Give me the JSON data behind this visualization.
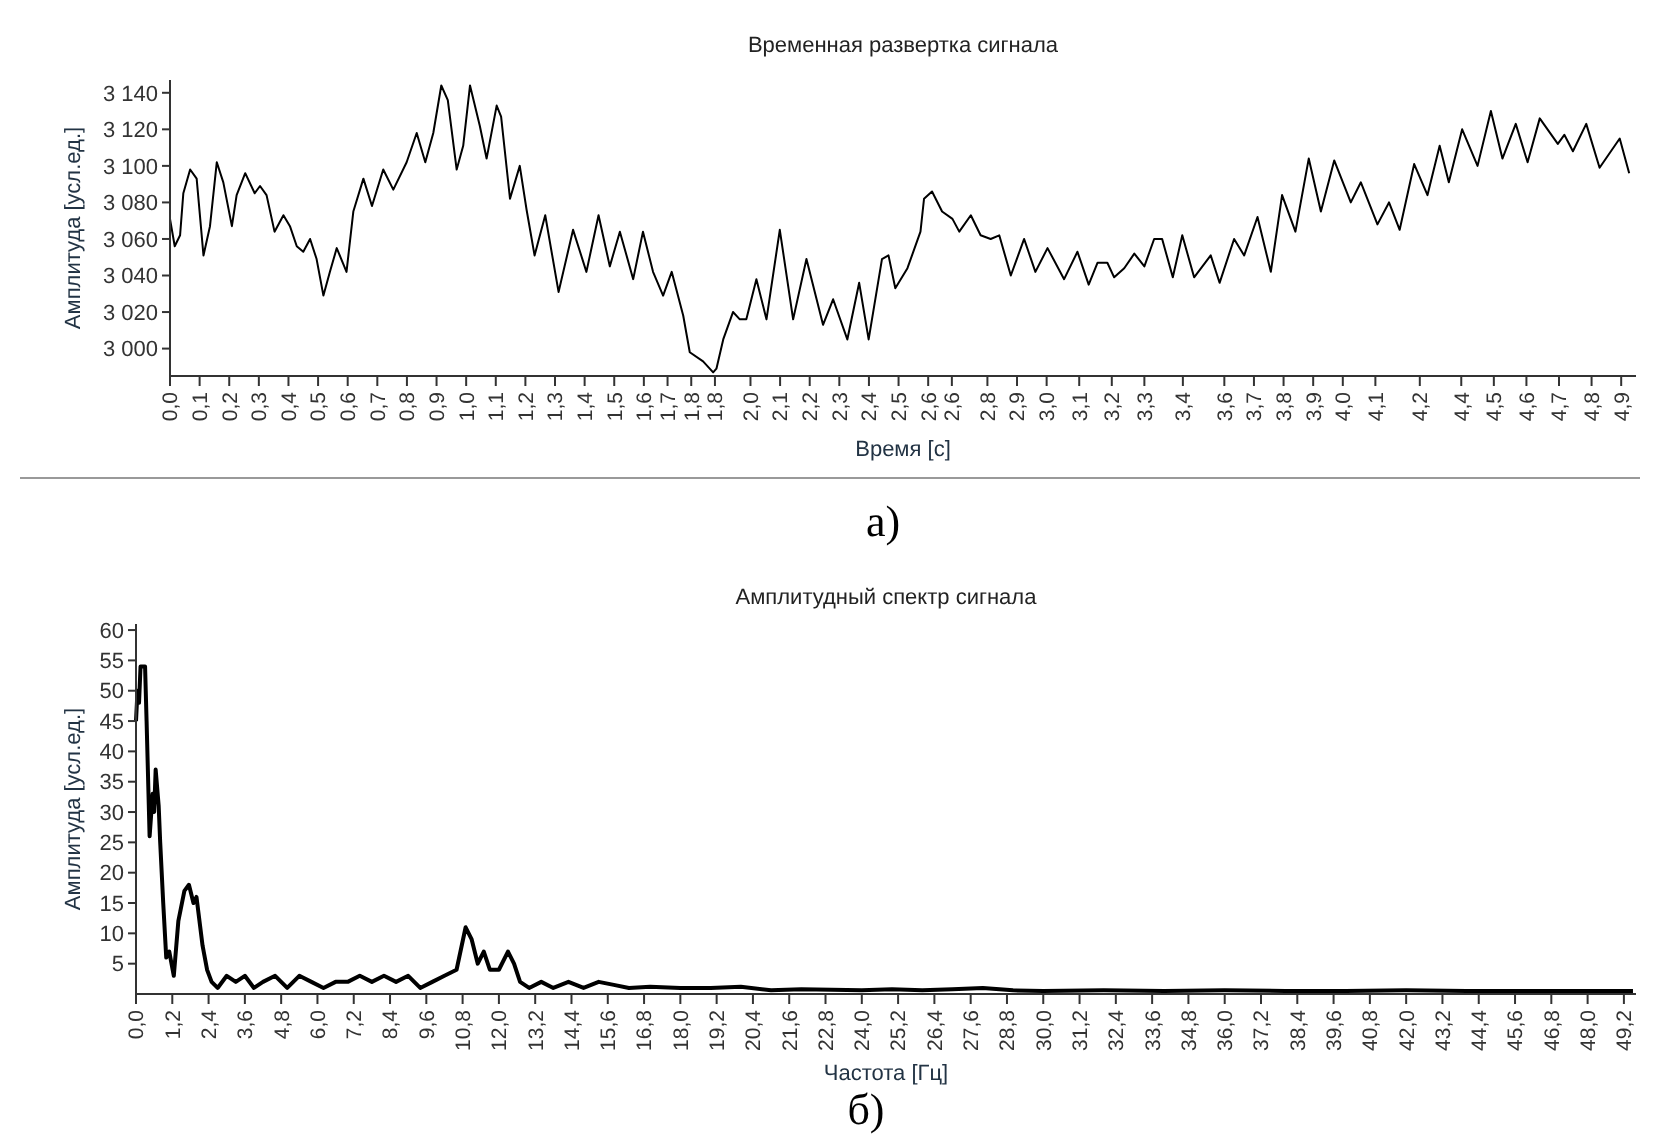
{
  "chart_data": [
    {
      "type": "line",
      "title": "Временная развертка сигнала",
      "xlabel": "Время [с]",
      "ylabel": "Амплитуда [усл.ед.]",
      "annotations": [
        "а)"
      ],
      "x": [
        0,
        0.016,
        0.034,
        0.045,
        0.068,
        0.09,
        0.113,
        0.135,
        0.158,
        0.18,
        0.209,
        0.225,
        0.254,
        0.286,
        0.304,
        0.326,
        0.353,
        0.383,
        0.405,
        0.428,
        0.45,
        0.473,
        0.495,
        0.518,
        0.54,
        0.563,
        0.596,
        0.619,
        0.653,
        0.682,
        0.72,
        0.754,
        0.799,
        0.833,
        0.862,
        0.889,
        0.916,
        0.938,
        0.968,
        0.99,
        1.013,
        1.046,
        1.069,
        1.103,
        1.118,
        1.148,
        1.181,
        1.204,
        1.231,
        1.267,
        1.312,
        1.361,
        1.406,
        1.447,
        1.485,
        1.519,
        1.564,
        1.597,
        1.631,
        1.665,
        1.694,
        1.733,
        1.755,
        1.8,
        1.834,
        1.845,
        1.868,
        1.901,
        1.924,
        1.946,
        1.98,
        2.014,
        2.059,
        2.104,
        2.149,
        2.205,
        2.239,
        2.287,
        2.327,
        2.359,
        2.404,
        2.426,
        2.449,
        2.49,
        2.534,
        2.546,
        2.573,
        2.607,
        2.642,
        2.665,
        2.704,
        2.737,
        2.771,
        2.8,
        2.839,
        2.884,
        2.922,
        2.963,
        3.019,
        3.064,
        3.102,
        3.132,
        3.165,
        3.188,
        3.222,
        3.256,
        3.29,
        3.323,
        3.35,
        3.386,
        3.418,
        3.458,
        3.514,
        3.544,
        3.593,
        3.627,
        3.672,
        3.717,
        3.755,
        3.8,
        3.845,
        3.886,
        3.931,
        3.987,
        4.021,
        4.077,
        4.116,
        4.152,
        4.201,
        4.246,
        4.287,
        4.318,
        4.363,
        4.415,
        4.46,
        4.499,
        4.544,
        4.584,
        4.625,
        4.686,
        4.708,
        4.737,
        4.782,
        4.827,
        4.895,
        4.927
      ],
      "series": [
        {
          "color": "#000000",
          "values": [
            3071,
            3056,
            3062,
            3085,
            3098,
            3093,
            3051,
            3067,
            3102,
            3091,
            3067,
            3084,
            3096,
            3085,
            3089,
            3084,
            3064,
            3073,
            3067,
            3056,
            3053,
            3060,
            3049,
            3029,
            3042,
            3055,
            3042,
            3075,
            3093,
            3078,
            3098,
            3087,
            3102,
            3118,
            3102,
            3118,
            3144,
            3136,
            3098,
            3111,
            3144,
            3122,
            3104,
            3133,
            3127,
            3082,
            3100,
            3076,
            3051,
            3073,
            3031,
            3065,
            3042,
            3073,
            3045,
            3064,
            3038,
            3064,
            3042,
            3029,
            3042,
            3018,
            2998,
            2993,
            2987,
            2989,
            3005,
            3020,
            3016,
            3016,
            3038,
            3016,
            3065,
            3016,
            3049,
            3013,
            3027,
            3005,
            3036,
            3005,
            3049,
            3051,
            3033,
            3044,
            3064,
            3082,
            3086,
            3075,
            3071,
            3064,
            3073,
            3062,
            3060,
            3062,
            3040,
            3060,
            3042,
            3055,
            3038,
            3053,
            3035,
            3047,
            3047,
            3039,
            3044,
            3052,
            3045,
            3060,
            3060,
            3039,
            3062,
            3039,
            3051,
            3036,
            3060,
            3051,
            3072,
            3042,
            3084,
            3064,
            3104,
            3075,
            3103,
            3080,
            3091,
            3068,
            3080,
            3065,
            3101,
            3084,
            3111,
            3091,
            3120,
            3100,
            3130,
            3104,
            3123,
            3102,
            3126,
            3112,
            3117,
            3108,
            3123,
            3099,
            3115,
            3096
          ]
        }
      ],
      "xlim": [
        0,
        4.95
      ],
      "ylim": [
        2985,
        3147
      ],
      "xticks": [
        {
          "value": 0,
          "label": "0,0"
        },
        {
          "value": 0.1,
          "label": "0,1"
        },
        {
          "value": 0.2,
          "label": "0,2"
        },
        {
          "value": 0.3,
          "label": "0,3"
        },
        {
          "value": 0.4,
          "label": "0,4"
        },
        {
          "value": 0.5,
          "label": "0,5"
        },
        {
          "value": 0.6,
          "label": "0,6"
        },
        {
          "value": 0.7,
          "label": "0,7"
        },
        {
          "value": 0.8,
          "label": "0,8"
        },
        {
          "value": 0.9,
          "label": "0,9"
        },
        {
          "value": 1.0,
          "label": "1,0"
        },
        {
          "value": 1.1,
          "label": "1,1"
        },
        {
          "value": 1.2,
          "label": "1,2"
        },
        {
          "value": 1.3,
          "label": "1,3"
        },
        {
          "value": 1.4,
          "label": "1,4"
        },
        {
          "value": 1.5,
          "label": "1,5"
        },
        {
          "value": 1.6,
          "label": "1,6"
        },
        {
          "value": 1.68,
          "label": "1,7"
        },
        {
          "value": 1.76,
          "label": "1,8"
        },
        {
          "value": 1.84,
          "label": "1,8"
        },
        {
          "value": 1.96,
          "label": "2,0"
        },
        {
          "value": 2.06,
          "label": "2,1"
        },
        {
          "value": 2.16,
          "label": "2,2"
        },
        {
          "value": 2.26,
          "label": "2,3"
        },
        {
          "value": 2.36,
          "label": "2,4"
        },
        {
          "value": 2.46,
          "label": "2,5"
        },
        {
          "value": 2.56,
          "label": "2,6"
        },
        {
          "value": 2.64,
          "label": "2,6"
        },
        {
          "value": 2.76,
          "label": "2,8"
        },
        {
          "value": 2.86,
          "label": "2,9"
        },
        {
          "value": 2.96,
          "label": "3,0"
        },
        {
          "value": 3.07,
          "label": "3,1"
        },
        {
          "value": 3.18,
          "label": "3,2"
        },
        {
          "value": 3.29,
          "label": "3,3"
        },
        {
          "value": 3.42,
          "label": "3,4"
        },
        {
          "value": 3.56,
          "label": "3,6"
        },
        {
          "value": 3.66,
          "label": "3,7"
        },
        {
          "value": 3.76,
          "label": "3,8"
        },
        {
          "value": 3.86,
          "label": "3,9"
        },
        {
          "value": 3.96,
          "label": "4,0"
        },
        {
          "value": 4.07,
          "label": "4,1"
        },
        {
          "value": 4.22,
          "label": "4,2"
        },
        {
          "value": 4.36,
          "label": "4,4"
        },
        {
          "value": 4.47,
          "label": "4,5"
        },
        {
          "value": 4.58,
          "label": "4,6"
        },
        {
          "value": 4.69,
          "label": "4,7"
        },
        {
          "value": 4.8,
          "label": "4,8"
        },
        {
          "value": 4.9,
          "label": "4,9"
        }
      ],
      "yticks": [
        {
          "value": 3000,
          "label": "3 000"
        },
        {
          "value": 3020,
          "label": "3 020"
        },
        {
          "value": 3040,
          "label": "3 040"
        },
        {
          "value": 3060,
          "label": "3 060"
        },
        {
          "value": 3080,
          "label": "3 080"
        },
        {
          "value": 3100,
          "label": "3 100"
        },
        {
          "value": 3120,
          "label": "3 120"
        },
        {
          "value": 3140,
          "label": "3 140"
        }
      ],
      "grid": false,
      "marker": "none",
      "line_style": "solid"
    },
    {
      "type": "line",
      "title": "Амплитудный спектр сигнала",
      "xlabel": "Частота [Гц]",
      "ylabel": "Амплитуда [усл.ед.]",
      "annotations": [
        "б)"
      ],
      "x": [
        0,
        0.05,
        0.1,
        0.15,
        0.3,
        0.35,
        0.45,
        0.55,
        0.6,
        0.65,
        0.75,
        0.8,
        0.9,
        1.0,
        1.1,
        1.25,
        1.4,
        1.6,
        1.75,
        1.9,
        2.0,
        2.2,
        2.35,
        2.5,
        2.7,
        3.0,
        3.3,
        3.6,
        3.9,
        4.2,
        4.6,
        5.0,
        5.4,
        5.8,
        6.2,
        6.6,
        7.0,
        7.4,
        7.8,
        8.2,
        8.6,
        9.0,
        9.4,
        9.8,
        10.2,
        10.6,
        10.9,
        11.1,
        11.3,
        11.5,
        11.7,
        12.0,
        12.3,
        12.5,
        12.7,
        13.0,
        13.4,
        13.8,
        14.3,
        14.8,
        15.3,
        15.8,
        16.3,
        17,
        18,
        19,
        20,
        21,
        22,
        23,
        24,
        25,
        26,
        27,
        28,
        29,
        30,
        32,
        34,
        36,
        38,
        40,
        42,
        44,
        46,
        48,
        49.5
      ],
      "series": [
        {
          "color": "#000000",
          "values": [
            45,
            50,
            48,
            54,
            54,
            45,
            26,
            33,
            30,
            37,
            31,
            25,
            15,
            6,
            7,
            3,
            12,
            17,
            18,
            15,
            16,
            8,
            4,
            2,
            1,
            3,
            2,
            3,
            1,
            2,
            3,
            1,
            3,
            2,
            1,
            2,
            2,
            3,
            2,
            3,
            2,
            3,
            1,
            2,
            3,
            4,
            11,
            9,
            5,
            7,
            4,
            4,
            7,
            5,
            2,
            1,
            2,
            1,
            2,
            1,
            2,
            1.5,
            1,
            1.2,
            1,
            1,
            1.2,
            0.6,
            0.8,
            0.7,
            0.6,
            0.8,
            0.6,
            0.8,
            1,
            0.6,
            0.5,
            0.6,
            0.5,
            0.6,
            0.5,
            0.5,
            0.6,
            0.5,
            0.5,
            0.5,
            0.5
          ]
        }
      ],
      "xlim": [
        0,
        49.6
      ],
      "ylim": [
        0,
        61
      ],
      "xticks": [
        {
          "value": 0,
          "label": "0,0"
        },
        {
          "value": 1.2,
          "label": "1,2"
        },
        {
          "value": 2.4,
          "label": "2,4"
        },
        {
          "value": 3.6,
          "label": "3,6"
        },
        {
          "value": 4.8,
          "label": "4,8"
        },
        {
          "value": 6,
          "label": "6,0"
        },
        {
          "value": 7.2,
          "label": "7,2"
        },
        {
          "value": 8.4,
          "label": "8,4"
        },
        {
          "value": 9.6,
          "label": "9,6"
        },
        {
          "value": 10.8,
          "label": "10,8"
        },
        {
          "value": 12,
          "label": "12,0"
        },
        {
          "value": 13.2,
          "label": "13,2"
        },
        {
          "value": 14.4,
          "label": "14,4"
        },
        {
          "value": 15.6,
          "label": "15,6"
        },
        {
          "value": 16.8,
          "label": "16,8"
        },
        {
          "value": 18,
          "label": "18,0"
        },
        {
          "value": 19.2,
          "label": "19,2"
        },
        {
          "value": 20.4,
          "label": "20,4"
        },
        {
          "value": 21.6,
          "label": "21,6"
        },
        {
          "value": 22.8,
          "label": "22,8"
        },
        {
          "value": 24,
          "label": "24,0"
        },
        {
          "value": 25.2,
          "label": "25,2"
        },
        {
          "value": 26.4,
          "label": "26,4"
        },
        {
          "value": 27.6,
          "label": "27,6"
        },
        {
          "value": 28.8,
          "label": "28,8"
        },
        {
          "value": 30,
          "label": "30,0"
        },
        {
          "value": 31.2,
          "label": "31,2"
        },
        {
          "value": 32.4,
          "label": "32,4"
        },
        {
          "value": 33.6,
          "label": "33,6"
        },
        {
          "value": 34.8,
          "label": "34,8"
        },
        {
          "value": 36,
          "label": "36,0"
        },
        {
          "value": 37.2,
          "label": "37,2"
        },
        {
          "value": 38.4,
          "label": "38,4"
        },
        {
          "value": 39.6,
          "label": "39,6"
        },
        {
          "value": 40.8,
          "label": "40,8"
        },
        {
          "value": 42,
          "label": "42,0"
        },
        {
          "value": 43.2,
          "label": "43,2"
        },
        {
          "value": 44.4,
          "label": "44,4"
        },
        {
          "value": 45.6,
          "label": "45,6"
        },
        {
          "value": 46.8,
          "label": "46,8"
        },
        {
          "value": 48,
          "label": "48,0"
        },
        {
          "value": 49.2,
          "label": "49,2"
        }
      ],
      "yticks": [
        5,
        10,
        15,
        20,
        25,
        30,
        35,
        40,
        45,
        50,
        55,
        60
      ],
      "grid": false,
      "marker": "none",
      "line_style": "solid"
    }
  ]
}
